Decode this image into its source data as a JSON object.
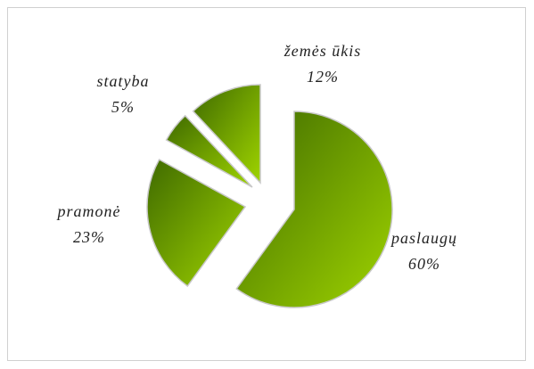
{
  "chart_data": {
    "type": "pie",
    "categories": [
      "paslaugų",
      "pramonė",
      "statyba",
      "žemės ūkis"
    ],
    "values": [
      60,
      23,
      5,
      12
    ],
    "value_labels": [
      "60%",
      "23%",
      "5%",
      "12%"
    ],
    "color": "#7fb200"
  }
}
